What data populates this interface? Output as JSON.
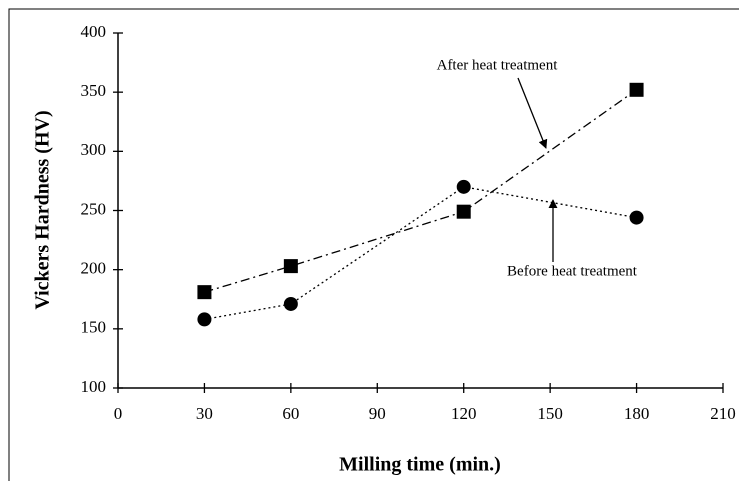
{
  "chart_data": {
    "type": "line",
    "x_label": "Milling time (min.)",
    "y_label": "Vickers Hardness (HV)",
    "xlim": [
      0,
      210
    ],
    "xticks": [
      0,
      30,
      60,
      90,
      120,
      150,
      180,
      210
    ],
    "ylim": [
      100,
      400
    ],
    "yticks": [
      100,
      150,
      200,
      250,
      300,
      350,
      400
    ],
    "series": [
      {
        "name": "After heat treatment",
        "color": "#000000",
        "marker": "square",
        "dash": "dash-dot",
        "x": [
          30,
          60,
          120,
          180
        ],
        "values": [
          181,
          203,
          249,
          352
        ]
      },
      {
        "name": "Before heat treatment",
        "color": "#000000",
        "marker": "circle",
        "dash": "dotted",
        "x": [
          30,
          60,
          120,
          180
        ],
        "values": [
          158,
          171,
          270,
          244
        ]
      }
    ]
  }
}
